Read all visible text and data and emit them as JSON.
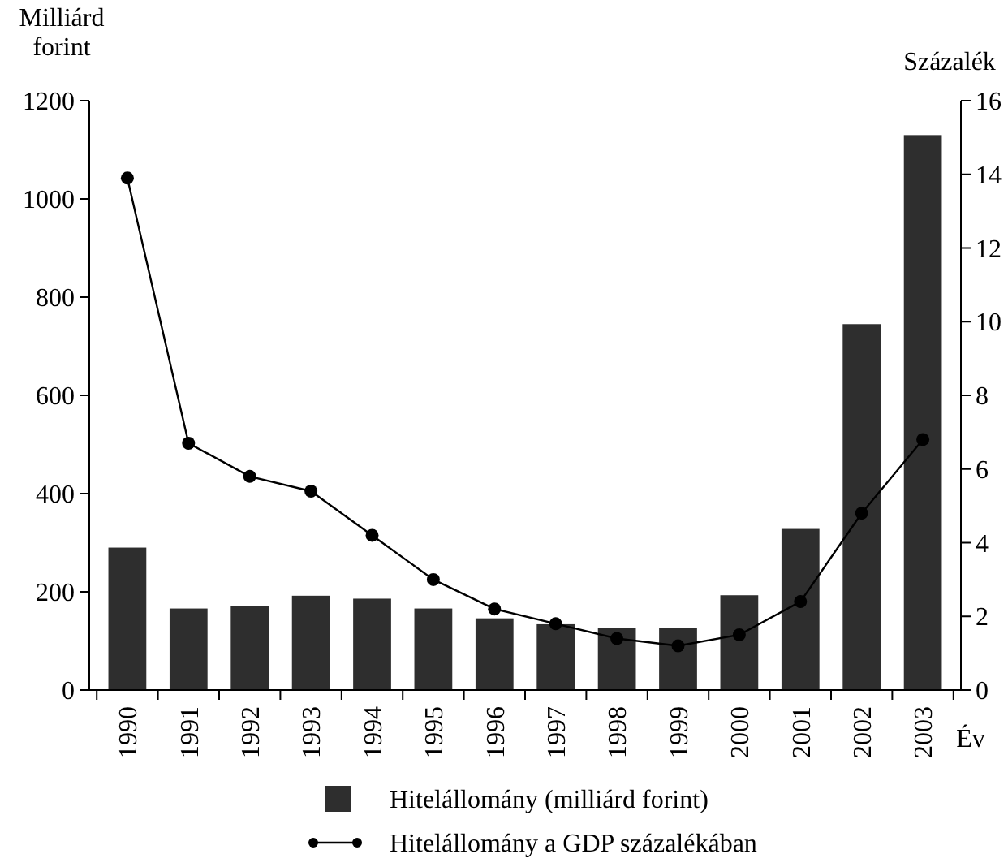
{
  "chart_data": {
    "type": "bar",
    "xlabel": "Év",
    "ylabel": "Milliárd forint",
    "y2label": "Százalék",
    "categories": [
      "1990",
      "1991",
      "1992",
      "1993",
      "1994",
      "1995",
      "1996",
      "1997",
      "1998",
      "1999",
      "2000",
      "2001",
      "2002",
      "2003"
    ],
    "series": [
      {
        "name": "Hitelállomány (milliárd forint)",
        "color": "#2e2e2e",
        "values": [
          290,
          166,
          171,
          192,
          186,
          166,
          146,
          134,
          127,
          127,
          193,
          328,
          745,
          1130
        ]
      },
      {
        "name": "Hitelállomány a GDP százalékában",
        "type": "line",
        "axis": "y2",
        "color": "#000000",
        "marker": "circle",
        "values": [
          13.9,
          6.7,
          5.8,
          5.4,
          4.2,
          3.0,
          2.2,
          1.8,
          1.4,
          1.2,
          1.5,
          2.4,
          4.8,
          6.8
        ]
      }
    ],
    "ylim": [
      0,
      1200
    ],
    "yticks": [
      0,
      200,
      400,
      600,
      800,
      1000,
      1200
    ],
    "y2lim": [
      0,
      16
    ],
    "y2ticks": [
      0,
      2,
      4,
      6,
      8,
      10,
      12,
      14,
      16
    ],
    "legend": "bottom"
  }
}
